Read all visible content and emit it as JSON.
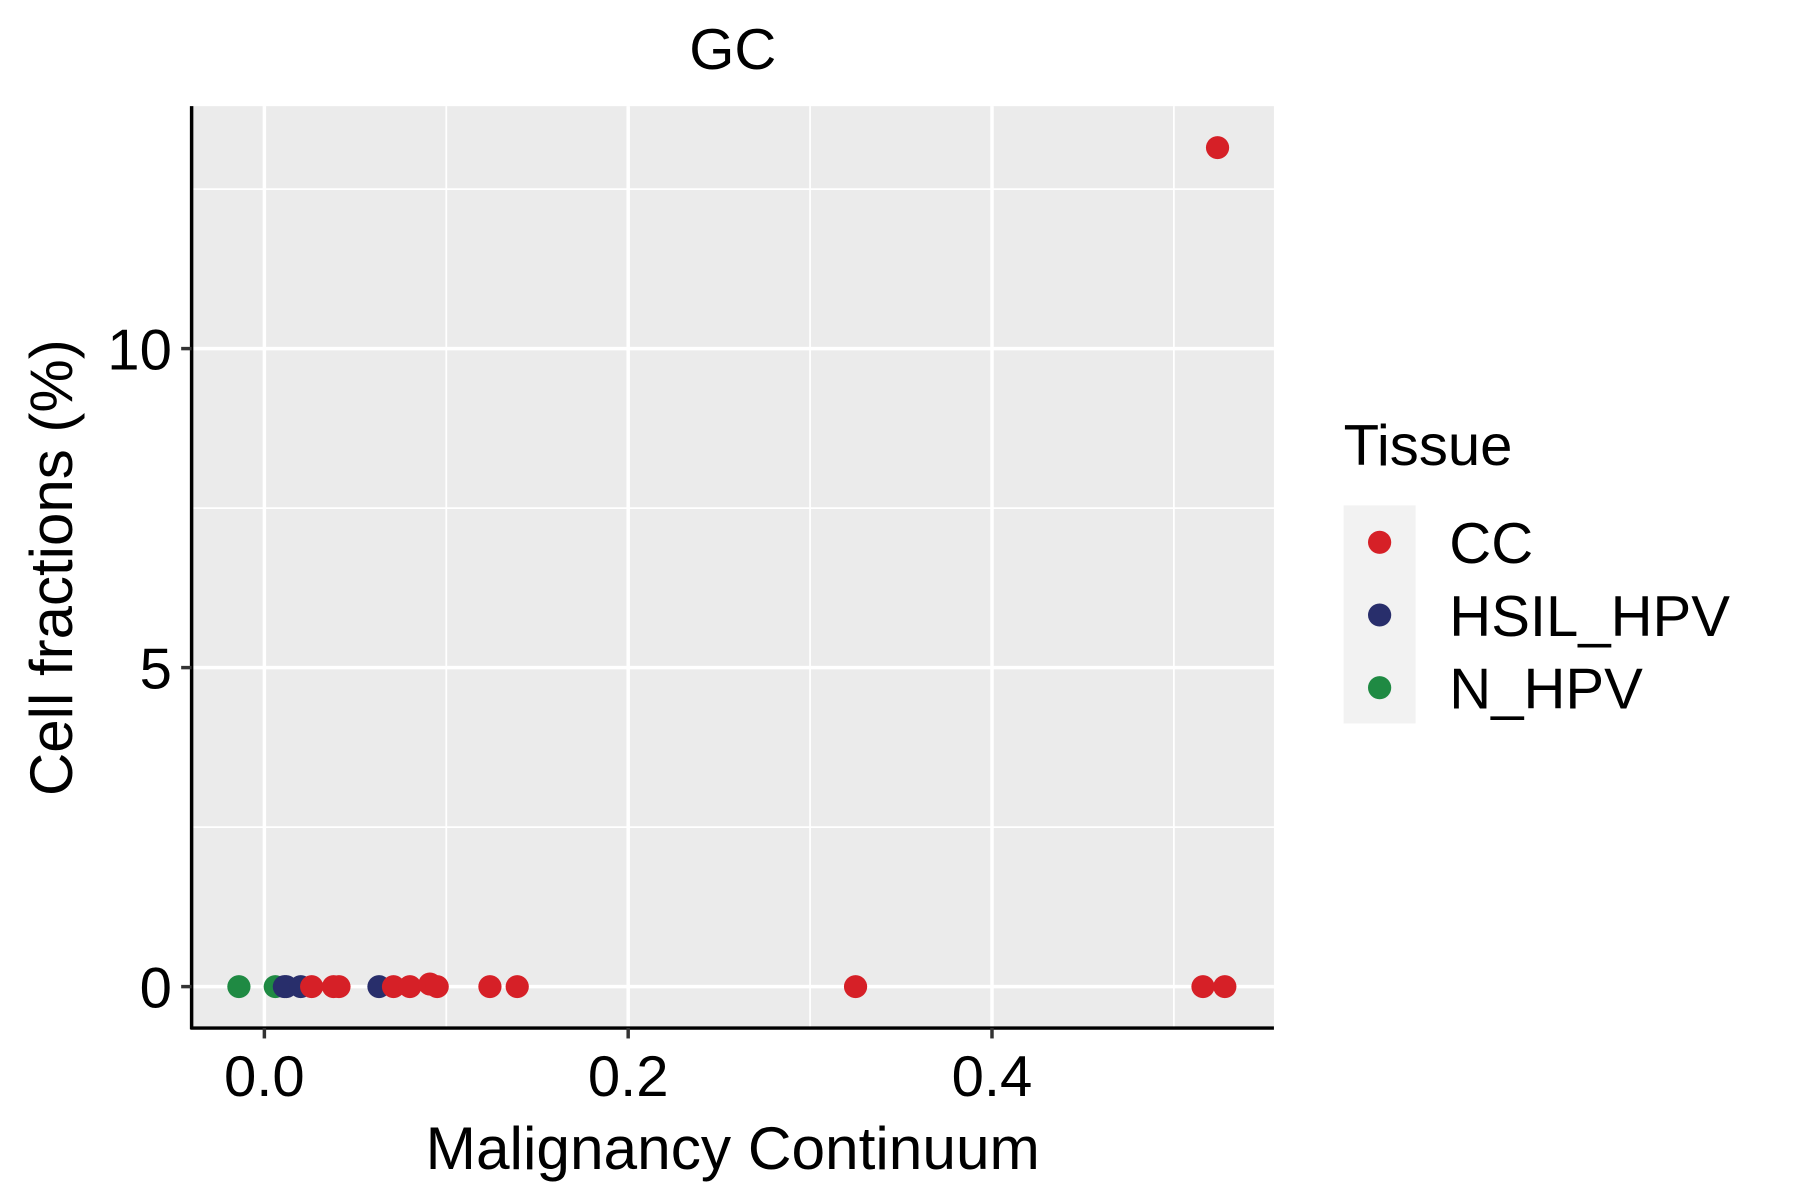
{
  "chart_data": {
    "type": "scatter",
    "title": "GC",
    "xlabel": "Malignancy Continuum",
    "ylabel": "Cell fractions (%)",
    "xlim": [
      -0.04,
      0.555
    ],
    "ylim": [
      -0.65,
      13.8
    ],
    "x_ticks": [
      {
        "v": 0,
        "label": "0.0"
      },
      {
        "v": 0.2,
        "label": "0.2"
      },
      {
        "v": 0.4,
        "label": "0.4"
      }
    ],
    "y_ticks": [
      {
        "v": 0,
        "label": "0"
      },
      {
        "v": 5,
        "label": "5"
      },
      {
        "v": 10,
        "label": "10"
      }
    ],
    "x_minor": [
      0.1,
      0.3,
      0.5
    ],
    "y_minor": [
      2.5,
      7.5,
      12.5
    ],
    "grid": true,
    "legend": {
      "title": "Tissue",
      "position": "right"
    },
    "series": [
      {
        "name": "CC",
        "color": "#d62027",
        "points": [
          [
            0.026,
            0
          ],
          [
            0.038,
            0
          ],
          [
            0.041,
            0
          ],
          [
            0.071,
            0
          ],
          [
            0.08,
            0
          ],
          [
            0.091,
            0.04
          ],
          [
            0.095,
            0
          ],
          [
            0.124,
            0
          ],
          [
            0.139,
            0
          ],
          [
            0.325,
            0
          ],
          [
            0.516,
            0
          ],
          [
            0.528,
            0
          ],
          [
            0.524,
            13.15
          ]
        ]
      },
      {
        "name": "HSIL_HPV",
        "color": "#282e6b",
        "points": [
          [
            0.011,
            0
          ],
          [
            0.012,
            0
          ],
          [
            0.02,
            0
          ],
          [
            0.063,
            0
          ]
        ]
      },
      {
        "name": "N_HPV",
        "color": "#1f8a43",
        "points": [
          [
            -0.014,
            0
          ],
          [
            0.006,
            0
          ]
        ]
      }
    ]
  }
}
